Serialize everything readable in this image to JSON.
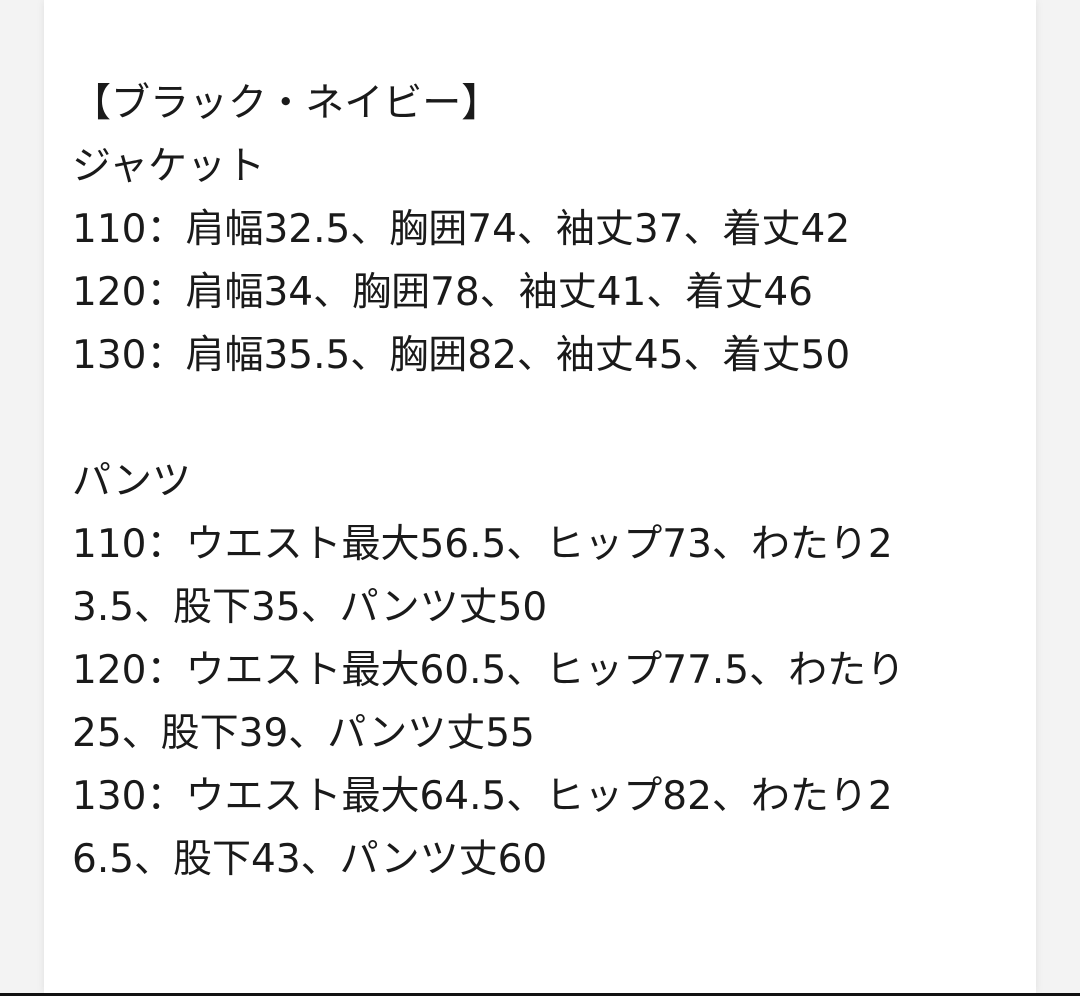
{
  "content": {
    "lines": [
      "【ブラック・ネイビー】",
      "ジャケット",
      "110：肩幅32.5、胸囲74、袖丈37、着丈42",
      "120：肩幅34、胸囲78、袖丈41、着丈46",
      "130：肩幅35.5、胸囲82、袖丈45、着丈50",
      "",
      "パンツ",
      "110：ウエスト最大56.5、ヒップ73、わたり2",
      "3.5、股下35、パンツ丈50",
      "120：ウエスト最大60.5、ヒップ77.5、わたり",
      "25、股下39、パンツ丈55",
      "130：ウエスト最大64.5、ヒップ82、わたり2",
      "6.5、股下43、パンツ丈60"
    ]
  }
}
